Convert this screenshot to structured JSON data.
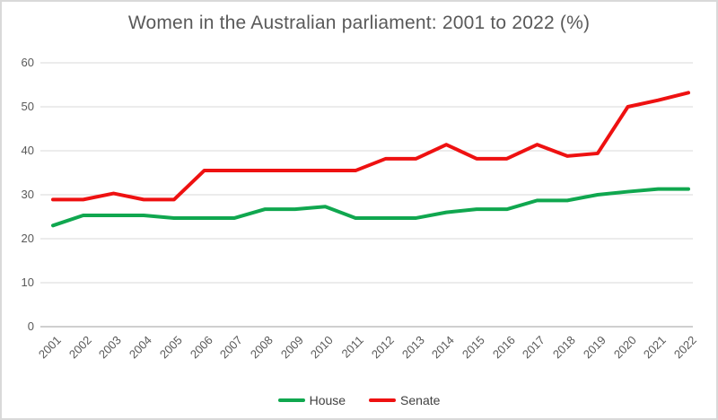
{
  "chart_data": {
    "type": "line",
    "title": "Women in the Australian parliament: 2001 to 2022 (%)",
    "categories": [
      "2001",
      "2002",
      "2003",
      "2004",
      "2005",
      "2006",
      "2007",
      "2008",
      "2009",
      "2010",
      "2011",
      "2012",
      "2013",
      "2014",
      "2015",
      "2016",
      "2017",
      "2018",
      "2019",
      "2020",
      "2021",
      "2022"
    ],
    "series": [
      {
        "name": "House",
        "color": "#10A74F",
        "values": [
          23.0,
          25.3,
          25.3,
          25.3,
          24.7,
          24.7,
          24.7,
          26.7,
          26.7,
          27.3,
          24.7,
          24.7,
          24.7,
          26.0,
          26.7,
          26.7,
          28.7,
          28.7,
          30.0,
          30.7,
          31.3,
          31.3
        ]
      },
      {
        "name": "Senate",
        "color": "#EE1111",
        "values": [
          28.9,
          28.9,
          30.3,
          28.9,
          28.9,
          35.5,
          35.5,
          35.5,
          35.5,
          35.5,
          35.5,
          38.2,
          38.2,
          41.4,
          38.2,
          38.2,
          41.4,
          38.8,
          39.4,
          50.0,
          51.5,
          53.2
        ]
      }
    ],
    "xlabel": "",
    "ylabel": "",
    "ylim": [
      0,
      60
    ],
    "yticks": [
      0,
      10,
      20,
      30,
      40,
      50,
      60
    ],
    "grid": true,
    "legend_position": "bottom",
    "colors": {
      "gridline": "#D9D9D9",
      "axis_line": "#CFCFCF",
      "title_text": "#595959",
      "tick_text": "#595959",
      "legend_text": "#404040",
      "background": "#FFFFFF",
      "border": "#D9D9D9"
    }
  }
}
